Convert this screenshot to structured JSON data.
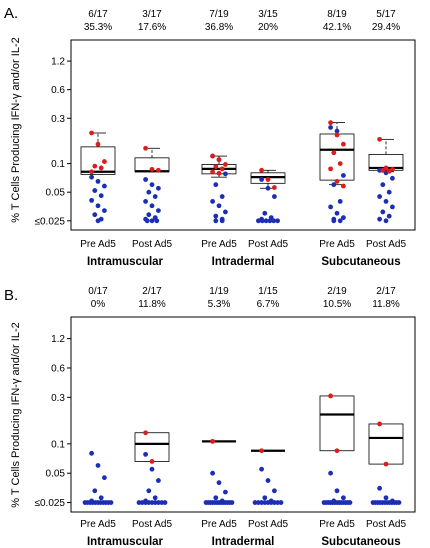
{
  "figure": {
    "ylabel": "% T Cells Producing IFN-γ and/or IL-2",
    "categories": [
      "Pre Ad5",
      "Post Ad5",
      "Pre Ad5",
      "Post Ad5",
      "Pre Ad5",
      "Post Ad5"
    ],
    "groups": [
      "Intramuscular",
      "Intradermal",
      "Subcutaneous"
    ],
    "y_ticks": [
      "1.2",
      "0.6",
      "0.3",
      "0.1",
      "0.05",
      "≤0.025"
    ],
    "colors": {
      "responder": "#dd1c1c",
      "nonresponder": "#1a2fb5",
      "box": "#000000"
    }
  },
  "chart_data": [
    {
      "panel": "A.",
      "type": "box-dot",
      "yscale": "log",
      "ylim": [
        0.02,
        2.0
      ],
      "counts": [
        "6/17",
        "3/17",
        "7/19",
        "3/15",
        "8/19",
        "5/17"
      ],
      "percents": [
        "35.3%",
        "17.6%",
        "36.8%",
        "20%",
        "42.1%",
        "29.4%"
      ],
      "boxes": [
        {
          "q1": 0.077,
          "median": 0.082,
          "q3": 0.15,
          "whisker_low": 0.077,
          "whisker_high": 0.21
        },
        {
          "q1": 0.082,
          "median": 0.083,
          "q3": 0.115,
          "whisker_low": 0.082,
          "whisker_high": 0.145
        },
        {
          "q1": 0.078,
          "median": 0.088,
          "q3": 0.098,
          "whisker_low": 0.072,
          "whisker_high": 0.12
        },
        {
          "q1": 0.062,
          "median": 0.072,
          "q3": 0.08,
          "whisker_low": 0.055,
          "whisker_high": 0.085
        },
        {
          "q1": 0.067,
          "median": 0.14,
          "q3": 0.205,
          "whisker_low": 0.06,
          "whisker_high": 0.27
        },
        {
          "q1": 0.085,
          "median": 0.09,
          "q3": 0.125,
          "whisker_low": 0.082,
          "whisker_high": 0.18
        }
      ],
      "responders": [
        [
          0.21,
          0.16,
          0.105,
          0.094,
          0.09,
          0.082
        ],
        [
          0.145,
          0.087,
          0.085
        ],
        [
          0.12,
          0.11,
          0.098,
          0.093,
          0.088,
          0.082,
          0.079
        ],
        [
          0.085,
          0.068,
          0.056
        ],
        [
          0.27,
          0.2,
          0.16,
          0.13,
          0.1,
          0.088,
          0.065,
          0.058
        ],
        [
          0.18,
          0.09,
          0.087,
          0.085,
          0.083
        ]
      ],
      "nonresponders": [
        [
          0.072,
          0.065,
          0.058,
          0.052,
          0.046,
          0.041,
          0.036,
          0.032,
          0.029,
          0.026,
          0.025
        ],
        [
          0.068,
          0.06,
          0.055,
          0.05,
          0.045,
          0.04,
          0.036,
          0.032,
          0.029,
          0.027,
          0.026,
          0.025,
          0.025,
          0.025
        ],
        [
          0.12,
          0.11,
          0.078,
          0.06,
          0.045,
          0.04,
          0.036,
          0.031,
          0.028,
          0.026,
          0.025,
          0.025
        ],
        [
          0.068,
          0.055,
          0.045,
          0.03,
          0.027,
          0.026,
          0.025,
          0.025,
          0.025,
          0.025,
          0.025,
          0.025
        ],
        [
          0.24,
          0.22,
          0.075,
          0.06,
          0.04,
          0.035,
          0.03,
          0.027,
          0.026,
          0.025,
          0.025
        ],
        [
          0.085,
          0.08,
          0.07,
          0.06,
          0.05,
          0.045,
          0.04,
          0.035,
          0.031,
          0.028,
          0.026,
          0.025
        ]
      ]
    },
    {
      "panel": "B.",
      "type": "box-dot",
      "yscale": "log",
      "ylim": [
        0.02,
        2.0
      ],
      "counts": [
        "0/17",
        "2/17",
        "1/19",
        "1/15",
        "2/19",
        "2/17"
      ],
      "percents": [
        "0%",
        "11.8%",
        "5.3%",
        "6.7%",
        "10.5%",
        "11.8%"
      ],
      "boxes": [
        null,
        {
          "q1": 0.066,
          "median": 0.1,
          "q3": 0.13,
          "whisker_low": 0.066,
          "whisker_high": 0.13
        },
        {
          "q1": 0.106,
          "median": 0.106,
          "q3": 0.106,
          "whisker_low": 0.106,
          "whisker_high": 0.106
        },
        {
          "q1": 0.085,
          "median": 0.085,
          "q3": 0.085,
          "whisker_low": 0.085,
          "whisker_high": 0.085
        },
        {
          "q1": 0.085,
          "median": 0.2,
          "q3": 0.31,
          "whisker_low": 0.085,
          "whisker_high": 0.31
        },
        {
          "q1": 0.062,
          "median": 0.115,
          "q3": 0.16,
          "whisker_low": 0.062,
          "whisker_high": 0.16
        }
      ],
      "responders": [
        [],
        [
          0.13,
          0.066
        ],
        [
          0.106
        ],
        [
          0.085
        ],
        [
          0.31,
          0.085
        ],
        [
          0.16,
          0.062
        ]
      ],
      "nonresponders": [
        [
          0.08,
          0.06,
          0.045,
          0.033,
          0.028,
          0.026,
          0.025,
          0.025,
          0.025,
          0.025,
          0.025,
          0.025,
          0.025,
          0.025,
          0.025,
          0.025,
          0.025
        ],
        [
          0.078,
          0.055,
          0.042,
          0.033,
          0.028,
          0.026,
          0.025,
          0.025,
          0.025,
          0.025,
          0.025,
          0.025,
          0.025,
          0.025,
          0.025
        ],
        [
          0.05,
          0.04,
          0.032,
          0.028,
          0.026,
          0.025,
          0.025,
          0.025,
          0.025,
          0.025,
          0.025,
          0.025,
          0.025,
          0.025,
          0.025,
          0.025,
          0.025,
          0.025
        ],
        [
          0.055,
          0.042,
          0.033,
          0.028,
          0.026,
          0.025,
          0.025,
          0.025,
          0.025,
          0.025,
          0.025,
          0.025,
          0.025,
          0.025
        ],
        [
          0.05,
          0.033,
          0.028,
          0.026,
          0.025,
          0.025,
          0.025,
          0.025,
          0.025,
          0.025,
          0.025,
          0.025,
          0.025,
          0.025,
          0.025,
          0.025,
          0.025
        ],
        [
          0.035,
          0.028,
          0.026,
          0.025,
          0.025,
          0.025,
          0.025,
          0.025,
          0.025,
          0.025,
          0.025,
          0.025,
          0.025,
          0.025,
          0.025
        ]
      ]
    }
  ]
}
